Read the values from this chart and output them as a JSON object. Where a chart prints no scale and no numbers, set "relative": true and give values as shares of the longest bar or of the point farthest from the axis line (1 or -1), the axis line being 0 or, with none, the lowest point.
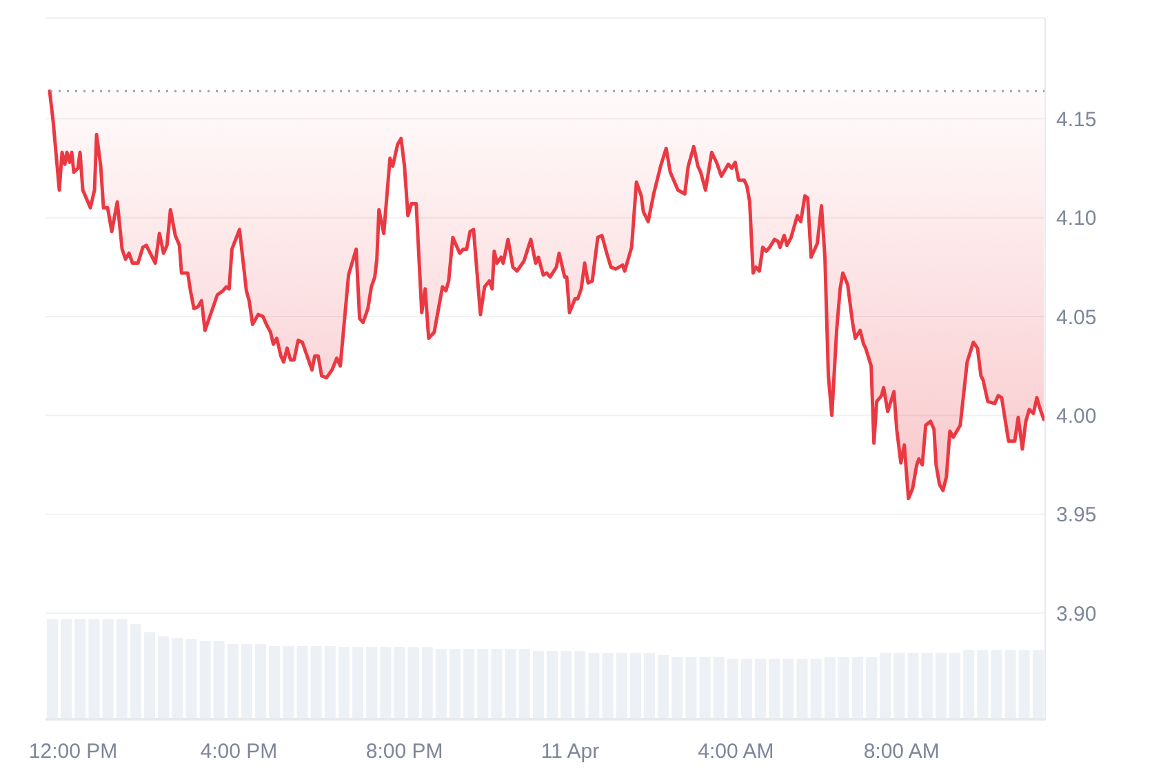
{
  "chart_data": [
    {
      "type": "line",
      "color": "#ea3943",
      "line_style": "solid",
      "grid": "y",
      "x": [
        "--04-10T11:26",
        "--04-10T11:31",
        "--04-10T11:40",
        "--04-10T11:44",
        "--04-10T11:48",
        "--04-10T11:51",
        "--04-10T11:55",
        "--04-10T11:58",
        "--04-10T12:01",
        "--04-10T12:07",
        "--04-10T12:10",
        "--04-10T12:14",
        "--04-10T12:25",
        "--04-10T12:31",
        "--04-10T12:34",
        "--04-10T12:40",
        "--04-10T12:44",
        "--04-10T12:50",
        "--04-10T12:56",
        "--04-10T13:04",
        "--04-10T13:11",
        "--04-10T13:16",
        "--04-10T13:21",
        "--04-10T13:26",
        "--04-10T13:34",
        "--04-10T13:41",
        "--04-10T13:46",
        "--04-10T13:59",
        "--04-10T14:05",
        "--04-10T14:11",
        "--04-10T14:16",
        "--04-10T14:21",
        "--04-10T14:28",
        "--04-10T14:34",
        "--04-10T14:37",
        "--04-10T14:46",
        "--04-10T14:50",
        "--04-10T14:55",
        "--04-10T15:01",
        "--04-10T15:06",
        "--04-10T15:11",
        "--04-10T15:29",
        "--04-10T15:37",
        "--04-10T15:42",
        "--04-10T15:46",
        "--04-10T15:50",
        "--04-10T16:01",
        "--04-10T16:11",
        "--04-10T16:15",
        "--04-10T16:20",
        "--04-10T16:28",
        "--04-10T16:35",
        "--04-10T16:40",
        "--04-10T16:46",
        "--04-10T16:50",
        "--04-10T16:55",
        "--04-10T17:01",
        "--04-10T17:05",
        "--04-10T17:10",
        "--04-10T17:15",
        "--04-10T17:20",
        "--04-10T17:26",
        "--04-10T17:32",
        "--04-10T17:39",
        "--04-10T17:46",
        "--04-10T17:50",
        "--04-10T17:55",
        "--04-10T18:00",
        "--04-10T18:07",
        "--04-10T18:15",
        "--04-10T18:22",
        "--04-10T18:27",
        "--04-10T18:39",
        "--04-10T18:50",
        "--04-10T18:55",
        "--04-10T19:00",
        "--04-10T19:07",
        "--04-10T19:12",
        "--04-10T19:17",
        "--04-10T19:20",
        "--04-10T19:23",
        "--04-10T19:30",
        "--04-10T19:39",
        "--04-10T19:43",
        "--04-10T19:50",
        "--04-10T19:55",
        "--04-10T20:00",
        "--04-10T20:05",
        "--04-10T20:10",
        "--04-10T20:17",
        "--04-10T20:25",
        "--04-10T20:30",
        "--04-10T20:35",
        "--04-10T20:43",
        "--04-10T20:55",
        "--04-10T21:00",
        "--04-10T21:04",
        "--04-10T21:10",
        "--04-10T21:20",
        "--04-10T21:25",
        "--04-10T21:30",
        "--04-10T21:35",
        "--04-10T21:40",
        "--04-10T21:50",
        "--04-10T21:56",
        "--04-10T22:03",
        "--04-10T22:07",
        "--04-10T22:10",
        "--04-10T22:14",
        "--04-10T22:20",
        "--04-10T22:23",
        "--04-10T22:30",
        "--04-10T22:37",
        "--04-10T22:43",
        "--04-10T22:53",
        "--04-10T23:03",
        "--04-10T23:10",
        "--04-10T23:14",
        "--04-10T23:21",
        "--04-10T23:26",
        "--04-10T23:31",
        "--04-10T23:40",
        "--04-10T23:44",
        "--04-10T23:52",
        "--04-10T23:55",
        "--04-10T23:59",
        "--04-11T00:07",
        "--04-11T00:11",
        "--04-11T00:16",
        "--04-11T00:21",
        "--04-11T00:26",
        "--04-11T00:32",
        "--04-11T00:40",
        "--04-11T00:46",
        "--04-11T00:53",
        "--04-11T00:59",
        "--04-11T01:06",
        "--04-11T01:16",
        "--04-11T01:19",
        "--04-11T01:29",
        "--04-11T01:36",
        "--04-11T01:43",
        "--04-11T01:46",
        "--04-11T01:53",
        "--04-11T02:01",
        "--04-11T02:11",
        "--04-11T02:19",
        "--04-11T02:25",
        "--04-11T02:36",
        "--04-11T02:46",
        "--04-11T02:51",
        "--04-11T02:59",
        "--04-11T03:05",
        "--04-11T03:09",
        "--04-11T03:16",
        "--04-11T03:25",
        "--04-11T03:32",
        "--04-11T03:39",
        "--04-11T03:49",
        "--04-11T03:54",
        "--04-11T03:59",
        "--04-11T04:04",
        "--04-11T04:12",
        "--04-11T04:16",
        "--04-11T04:20",
        "--04-11T04:25",
        "--04-11T04:29",
        "--04-11T04:34",
        "--04-11T04:39",
        "--04-11T04:44",
        "--04-11T04:49",
        "--04-11T04:56",
        "--04-11T05:01",
        "--04-11T05:04",
        "--04-11T05:10",
        "--04-11T05:14",
        "--04-11T05:20",
        "--04-11T05:29",
        "--04-11T05:34",
        "--04-11T05:40",
        "--04-11T05:44",
        "--04-11T05:49",
        "--04-11T05:58",
        "--04-11T06:04",
        "--04-11T06:09",
        "--04-11T06:14",
        "--04-11T06:19",
        "--04-11T06:26",
        "--04-11T06:31",
        "--04-11T06:35",
        "--04-11T06:42",
        "--04-11T06:49",
        "--04-11T06:53",
        "--04-11T07:00",
        "--04-11T07:05",
        "--04-11T07:08",
        "--04-11T07:16",
        "--04-11T07:20",
        "--04-11T07:24",
        "--04-11T07:31",
        "--04-11T07:34",
        "--04-11T07:40",
        "--04-11T07:49",
        "--04-11T07:53",
        "--04-11T07:59",
        "--04-11T08:04",
        "--04-11T08:10",
        "--04-11T08:16",
        "--04-11T08:22",
        "--04-11T08:25",
        "--04-11T08:30",
        "--04-11T08:35",
        "--04-11T08:42",
        "--04-11T08:47",
        "--04-11T08:50",
        "--04-11T08:55",
        "--04-11T09:00",
        "--04-11T09:05",
        "--04-11T09:10",
        "--04-11T09:15",
        "--04-11T09:20",
        "--04-11T09:25",
        "--04-11T09:35",
        "--04-11T09:44",
        "--04-11T09:50",
        "--04-11T09:55",
        "--04-11T09:58",
        "--04-11T10:05",
        "--04-11T10:15",
        "--04-11T10:20",
        "--04-11T10:25",
        "--04-11T10:35",
        "--04-11T10:44",
        "--04-11T10:49",
        "--04-11T10:55",
        "--04-11T11:00",
        "--04-11T11:05",
        "--04-11T11:11",
        "--04-11T11:16",
        "--04-11T11:20",
        "--04-11T11:26"
      ],
      "values": [
        4.164,
        4.149,
        4.114,
        4.133,
        4.127,
        4.133,
        4.128,
        4.133,
        4.123,
        4.125,
        4.133,
        4.114,
        4.105,
        4.114,
        4.142,
        4.126,
        4.105,
        4.105,
        4.093,
        4.108,
        4.084,
        4.079,
        4.082,
        4.077,
        4.077,
        4.085,
        4.086,
        4.077,
        4.092,
        4.082,
        4.086,
        4.104,
        4.091,
        4.086,
        4.072,
        4.072,
        4.063,
        4.054,
        4.055,
        4.058,
        4.043,
        4.061,
        4.063,
        4.065,
        4.064,
        4.084,
        4.094,
        4.063,
        4.058,
        4.046,
        4.051,
        4.05,
        4.046,
        4.042,
        4.036,
        4.039,
        4.03,
        4.027,
        4.034,
        4.028,
        4.028,
        4.038,
        4.037,
        4.03,
        4.023,
        4.03,
        4.03,
        4.02,
        4.019,
        4.023,
        4.029,
        4.025,
        4.071,
        4.084,
        4.049,
        4.047,
        4.054,
        4.065,
        4.07,
        4.079,
        4.104,
        4.092,
        4.13,
        4.126,
        4.137,
        4.14,
        4.126,
        4.101,
        4.107,
        4.107,
        4.052,
        4.064,
        4.039,
        4.042,
        4.065,
        4.063,
        4.068,
        4.09,
        4.082,
        4.084,
        4.084,
        4.093,
        4.094,
        4.051,
        4.065,
        4.068,
        4.064,
        4.083,
        4.077,
        4.08,
        4.077,
        4.089,
        4.075,
        4.073,
        4.078,
        4.089,
        4.077,
        4.08,
        4.071,
        4.072,
        4.07,
        4.075,
        4.082,
        4.07,
        4.07,
        4.052,
        4.059,
        4.059,
        4.064,
        4.077,
        4.067,
        4.068,
        4.09,
        4.091,
        4.082,
        4.075,
        4.074,
        4.076,
        4.073,
        4.085,
        4.118,
        4.111,
        4.103,
        4.098,
        4.112,
        4.126,
        4.135,
        4.123,
        4.114,
        4.112,
        4.126,
        4.136,
        4.126,
        4.123,
        4.114,
        4.133,
        4.128,
        4.121,
        4.127,
        4.125,
        4.128,
        4.119,
        4.119,
        4.116,
        4.108,
        4.072,
        4.075,
        4.073,
        4.085,
        4.083,
        4.085,
        4.089,
        4.088,
        4.085,
        4.091,
        4.086,
        4.09,
        4.101,
        4.098,
        4.111,
        4.11,
        4.08,
        4.087,
        4.106,
        4.08,
        4.02,
        4.0,
        4.043,
        4.064,
        4.072,
        4.066,
        4.047,
        4.039,
        4.043,
        4.036,
        4.034,
        4.025,
        3.986,
        4.007,
        4.01,
        4.014,
        4.002,
        4.012,
        3.993,
        3.976,
        3.985,
        3.958,
        3.963,
        3.975,
        3.978,
        3.975,
        3.995,
        3.997,
        3.993,
        3.975,
        3.965,
        3.962,
        3.969,
        3.992,
        3.989,
        3.992,
        3.995,
        4.027,
        4.037,
        4.034,
        4.02,
        4.018,
        4.007,
        4.006,
        4.01,
        4.009,
        3.987,
        3.987,
        3.999,
        3.983,
        3.997,
        4.003,
        4.001,
        4.009,
        4.004,
        3.998
      ],
      "xlim": [
        "--04-10T11:20",
        "--04-11T11:28"
      ],
      "xticks": [
        {
          "value": "--04-10T12:00",
          "label": "12:00 PM"
        },
        {
          "value": "--04-10T16:00",
          "label": "4:00 PM"
        },
        {
          "value": "--04-10T20:00",
          "label": "8:00 PM"
        },
        {
          "value": "--04-11T00:00",
          "label": "11 Apr"
        },
        {
          "value": "--04-11T04:00",
          "label": "4:00 AM"
        },
        {
          "value": "--04-11T08:00",
          "label": "8:00 AM"
        }
      ],
      "ylim": [
        3.846,
        4.201
      ],
      "yticks": [
        {
          "value": 3.9,
          "label": "3.90"
        },
        3.95,
        {
          "value": 4,
          "label": "4.00"
        },
        4.05,
        {
          "value": 4.1,
          "label": "4.10"
        },
        4.15
      ],
      "ref_lines": [
        {
          "axis": "y",
          "value": 4.164,
          "color": "#9aa0a6",
          "line_style": "dotted"
        }
      ]
    },
    {
      "type": "bar",
      "relative": true,
      "color": "#edf0f4",
      "tick_labels": false,
      "categories": [
        null,
        null,
        null,
        null,
        null,
        null,
        null,
        null,
        null,
        null,
        null,
        null,
        null,
        null,
        null,
        null,
        null,
        null,
        null,
        null,
        null,
        null,
        null,
        null,
        null,
        null,
        null,
        null,
        null,
        null,
        null,
        null,
        null,
        null,
        null,
        null,
        null,
        null,
        null,
        null,
        null,
        null,
        null,
        null,
        null,
        null,
        null,
        null,
        null,
        null,
        null,
        null,
        null,
        null,
        null,
        null,
        null,
        null,
        null,
        null,
        null,
        null,
        null,
        null,
        null,
        null,
        null,
        null,
        null,
        null,
        null,
        null
      ],
      "values": [
        1,
        1,
        1,
        1,
        1,
        1,
        0.95,
        0.87,
        0.83,
        0.81,
        0.8,
        0.78,
        0.78,
        0.75,
        0.75,
        0.75,
        0.73,
        0.73,
        0.73,
        0.73,
        0.73,
        0.72,
        0.72,
        0.72,
        0.72,
        0.72,
        0.72,
        0.72,
        0.7,
        0.7,
        0.7,
        0.7,
        0.7,
        0.7,
        0.7,
        0.68,
        0.68,
        0.68,
        0.68,
        0.66,
        0.66,
        0.66,
        0.66,
        0.66,
        0.64,
        0.62,
        0.62,
        0.62,
        0.62,
        0.6,
        0.6,
        0.6,
        0.6,
        0.6,
        0.6,
        0.6,
        0.62,
        0.62,
        0.62,
        0.62,
        0.66,
        0.66,
        0.66,
        0.66,
        0.66,
        0.66,
        0.69,
        0.69,
        0.69,
        0.69,
        0.69,
        0.69
      ]
    }
  ]
}
